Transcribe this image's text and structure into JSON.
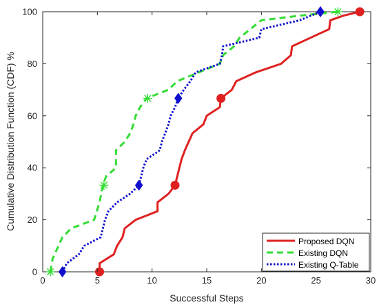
{
  "chart_data": {
    "type": "line",
    "xlabel": "Successful Steps",
    "ylabel": "Cumulative Distribution Function (CDF) %",
    "xlim": [
      0,
      30
    ],
    "ylim": [
      0,
      100
    ],
    "xticks": [
      "0",
      "5",
      "10",
      "15",
      "20",
      "25",
      "30"
    ],
    "yticks": [
      "0",
      "20",
      "40",
      "60",
      "80",
      "100"
    ],
    "grid": false,
    "legend_position": "bottom-right",
    "series": [
      {
        "name": "Proposed DQN",
        "color": "#e02020",
        "dash": "solid",
        "marker": "circle",
        "points": [
          [
            5.2,
            0
          ],
          [
            5.2,
            3.3
          ],
          [
            6.5,
            6.7
          ],
          [
            6.8,
            10
          ],
          [
            7.3,
            13.3
          ],
          [
            7.5,
            16.7
          ],
          [
            8.5,
            20
          ],
          [
            10.5,
            23.3
          ],
          [
            10.5,
            26.7
          ],
          [
            11.5,
            30
          ],
          [
            12.1,
            33.3
          ],
          [
            12.5,
            40
          ],
          [
            12.7,
            43.3
          ],
          [
            13.0,
            46.7
          ],
          [
            13.7,
            53.3
          ],
          [
            14.7,
            56.7
          ],
          [
            15.0,
            60
          ],
          [
            16.2,
            63.3
          ],
          [
            16.3,
            66.7
          ],
          [
            17.3,
            70
          ],
          [
            17.7,
            73.3
          ],
          [
            19.5,
            76.7
          ],
          [
            21.8,
            80
          ],
          [
            22.7,
            83.3
          ],
          [
            22.8,
            86.7
          ],
          [
            24.5,
            90
          ],
          [
            26.2,
            93.3
          ],
          [
            26.3,
            96.7
          ],
          [
            27.5,
            98.5
          ],
          [
            29.0,
            100
          ]
        ],
        "markers": [
          [
            5.2,
            0
          ],
          [
            12.1,
            33.3
          ],
          [
            16.3,
            66.7
          ],
          [
            29.0,
            100
          ]
        ]
      },
      {
        "name": "Existing DQN",
        "color": "#33dd33",
        "dash": "dashed",
        "marker": "asterisk",
        "points": [
          [
            0.7,
            0
          ],
          [
            0.9,
            5
          ],
          [
            1.8,
            13.3
          ],
          [
            2.6,
            16.7
          ],
          [
            4.7,
            20
          ],
          [
            5.2,
            26.7
          ],
          [
            5.5,
            33.3
          ],
          [
            5.8,
            36.7
          ],
          [
            6.7,
            40
          ],
          [
            6.7,
            46.7
          ],
          [
            7.5,
            50
          ],
          [
            8.0,
            53.3
          ],
          [
            8.3,
            56.7
          ],
          [
            8.5,
            60
          ],
          [
            8.9,
            63.3
          ],
          [
            9.5,
            66.7
          ],
          [
            11.5,
            70
          ],
          [
            12.3,
            73.3
          ],
          [
            14.3,
            76.7
          ],
          [
            15.3,
            78.5
          ],
          [
            16.2,
            80
          ],
          [
            16.5,
            83.3
          ],
          [
            17.5,
            86.7
          ],
          [
            18.0,
            90
          ],
          [
            20.0,
            96.7
          ],
          [
            23.5,
            98.5
          ],
          [
            27.0,
            100
          ]
        ],
        "markers": [
          [
            0.7,
            0
          ],
          [
            5.6,
            33.3
          ],
          [
            9.6,
            66.7
          ],
          [
            27.0,
            100
          ]
        ]
      },
      {
        "name": "Existing Q-Table",
        "color": "#1010cc",
        "dash": "dotted",
        "marker": "diamond",
        "points": [
          [
            1.8,
            0
          ],
          [
            2.2,
            3.3
          ],
          [
            3.3,
            6.7
          ],
          [
            3.8,
            10
          ],
          [
            5.3,
            13.3
          ],
          [
            5.5,
            16.7
          ],
          [
            5.7,
            20
          ],
          [
            6.0,
            23.3
          ],
          [
            6.8,
            26.7
          ],
          [
            8.0,
            30
          ],
          [
            8.8,
            33.3
          ],
          [
            9.2,
            40
          ],
          [
            9.5,
            43.3
          ],
          [
            10.7,
            46.7
          ],
          [
            10.9,
            50
          ],
          [
            11.2,
            53.3
          ],
          [
            11.5,
            56.7
          ],
          [
            11.7,
            60
          ],
          [
            12.1,
            63.3
          ],
          [
            12.4,
            66.7
          ],
          [
            12.9,
            70
          ],
          [
            13.5,
            73.3
          ],
          [
            14.0,
            76.7
          ],
          [
            16.2,
            80
          ],
          [
            16.4,
            83.3
          ],
          [
            16.5,
            86.7
          ],
          [
            19.8,
            90
          ],
          [
            20.0,
            93.3
          ],
          [
            23.5,
            96.7
          ],
          [
            25.4,
            100
          ]
        ],
        "markers": [
          [
            1.8,
            0
          ],
          [
            8.8,
            33.3
          ],
          [
            12.4,
            66.7
          ],
          [
            25.4,
            100
          ]
        ]
      }
    ]
  }
}
